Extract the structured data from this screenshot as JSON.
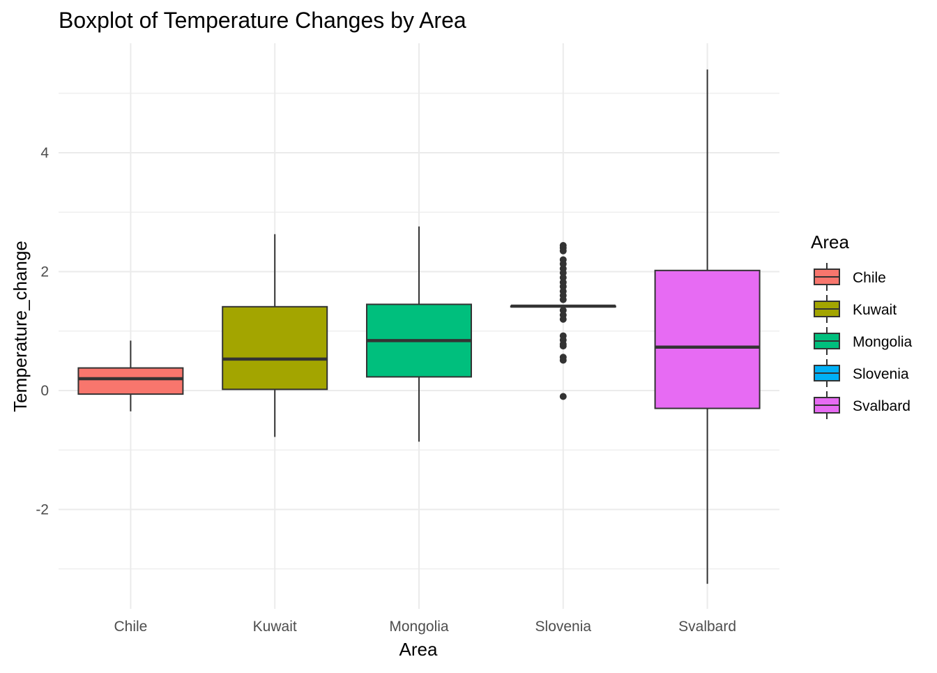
{
  "chart_data": {
    "type": "boxplot",
    "title": "Boxplot of Temperature Changes by Area",
    "xlabel": "Area",
    "ylabel": "Temperature_change",
    "categories": [
      "Chile",
      "Kuwait",
      "Mongolia",
      "Slovenia",
      "Svalbard"
    ],
    "ylim": [
      -3.6,
      5.9
    ],
    "yticks": [
      -2,
      0,
      2,
      4
    ],
    "grid": true,
    "legend": {
      "title": "Area",
      "position": "right"
    },
    "series": [
      {
        "name": "Chile",
        "color": "#F8766D",
        "min": -0.35,
        "q1": -0.06,
        "median": 0.2,
        "q3": 0.38,
        "max": 0.84,
        "outliers": []
      },
      {
        "name": "Kuwait",
        "color": "#A3A500",
        "min": -0.78,
        "q1": 0.02,
        "median": 0.53,
        "q3": 1.41,
        "max": 2.63,
        "outliers": []
      },
      {
        "name": "Mongolia",
        "color": "#00BF7D",
        "min": -0.86,
        "q1": 0.23,
        "median": 0.84,
        "q3": 1.45,
        "max": 2.76,
        "outliers": []
      },
      {
        "name": "Slovenia",
        "color": "#00B0F6",
        "min": 1.42,
        "q1": 1.42,
        "median": 1.42,
        "q3": 1.42,
        "max": 1.42,
        "outliers": [
          2.44,
          2.4,
          2.35,
          2.2,
          2.13,
          2.05,
          1.98,
          1.9,
          1.82,
          1.75,
          1.67,
          1.6,
          1.53,
          1.35,
          1.27,
          1.2,
          0.92,
          0.85,
          0.78,
          0.75,
          0.56,
          0.51,
          -0.1
        ]
      },
      {
        "name": "Svalbard",
        "color": "#E76BF3",
        "min": -3.25,
        "q1": -0.3,
        "median": 0.73,
        "q3": 2.02,
        "max": 5.4,
        "outliers": []
      }
    ]
  }
}
